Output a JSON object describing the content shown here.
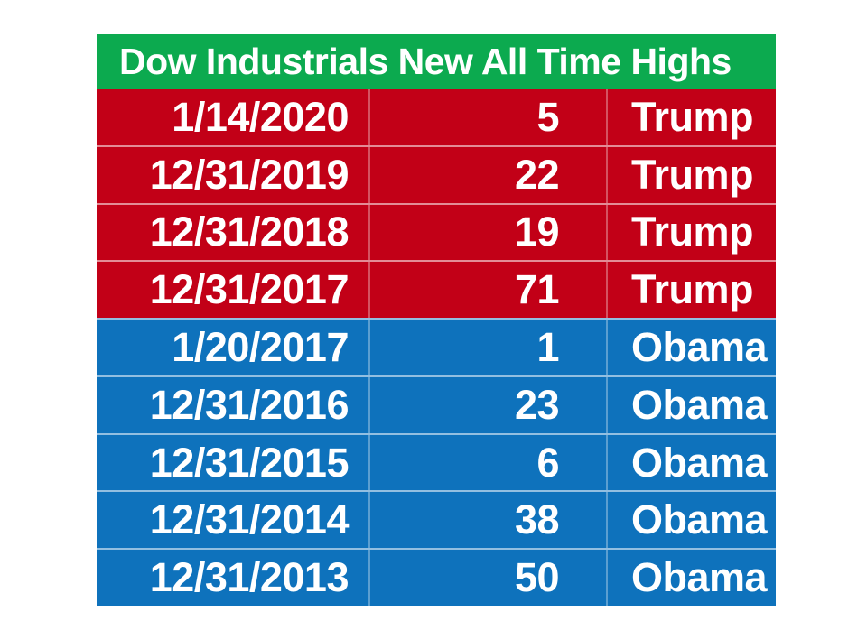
{
  "page": {
    "background": "#ffffff"
  },
  "table": {
    "title": "Dow Industrials New All Time Highs",
    "title_bg": "#0caa4f",
    "title_color": "#ffffff",
    "party_colors": {
      "Trump": "#c20017",
      "Obama": "#0e72bc"
    },
    "separator_horizontal": "rgba(255,255,255,0.55)",
    "separator_vertical": "rgba(255,255,255,0.32)",
    "rows": [
      {
        "date": "1/14/2020",
        "new_highs": "5",
        "president": "Trump"
      },
      {
        "date": "12/31/2019",
        "new_highs": "22",
        "president": "Trump"
      },
      {
        "date": "12/31/2018",
        "new_highs": "19",
        "president": "Trump"
      },
      {
        "date": "12/31/2017",
        "new_highs": "71",
        "president": "Trump"
      },
      {
        "date": "1/20/2017",
        "new_highs": "1",
        "president": "Obama"
      },
      {
        "date": "12/31/2016",
        "new_highs": "23",
        "president": "Obama"
      },
      {
        "date": "12/31/2015",
        "new_highs": "6",
        "president": "Obama"
      },
      {
        "date": "12/31/2014",
        "new_highs": "38",
        "president": "Obama"
      },
      {
        "date": "12/31/2013",
        "new_highs": "50",
        "president": "Obama"
      }
    ]
  },
  "chart_data": {
    "type": "table",
    "title": "Dow Industrials New All Time Highs",
    "columns": [
      "date",
      "new_all_time_highs",
      "president"
    ],
    "rows": [
      [
        "1/14/2020",
        5,
        "Trump"
      ],
      [
        "12/31/2019",
        22,
        "Trump"
      ],
      [
        "12/31/2018",
        19,
        "Trump"
      ],
      [
        "12/31/2017",
        71,
        "Trump"
      ],
      [
        "1/20/2017",
        1,
        "Obama"
      ],
      [
        "12/31/2016",
        23,
        "Obama"
      ],
      [
        "12/31/2015",
        6,
        "Obama"
      ],
      [
        "12/31/2014",
        38,
        "Obama"
      ],
      [
        "12/31/2013",
        50,
        "Obama"
      ]
    ],
    "header_color": "#0caa4f",
    "row_color_by_president": {
      "Trump": "#c20017",
      "Obama": "#0e72bc"
    }
  }
}
